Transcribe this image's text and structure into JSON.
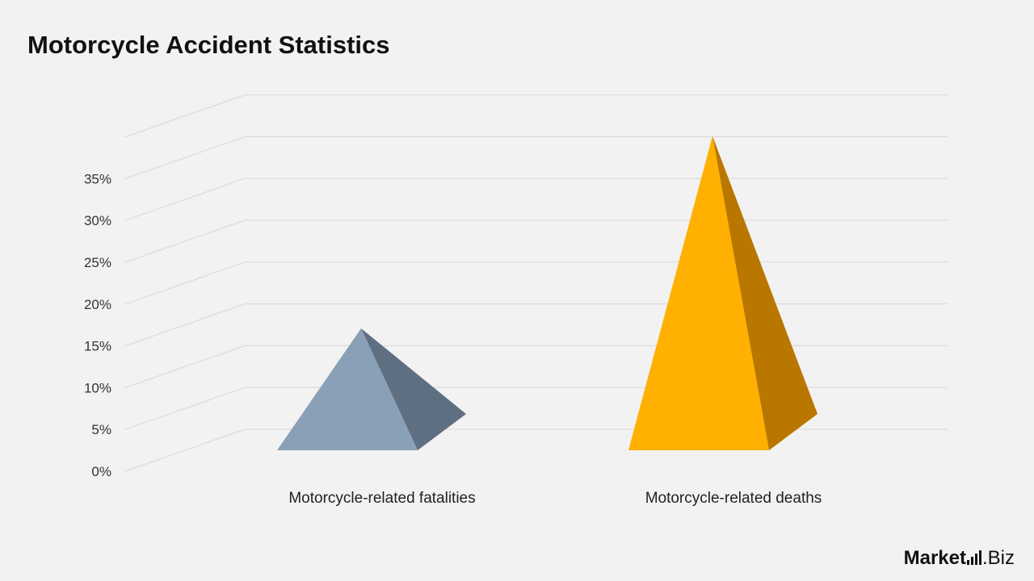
{
  "chart_data": {
    "type": "bar",
    "style": "3d-pyramid",
    "title": "Motorcycle Accident Statistics",
    "xlabel": "",
    "ylabel": "",
    "categories": [
      "Motorcycle-related fatalities",
      "Motorcycle-related deaths"
    ],
    "values": [
      14,
      37
    ],
    "yticks": [
      "0%",
      "5%",
      "10%",
      "15%",
      "20%",
      "25%",
      "30%",
      "35%"
    ],
    "ylim": [
      0,
      40
    ],
    "grid": true,
    "colors": [
      {
        "front": "#8aa0b7",
        "side": "#5f6f82"
      },
      {
        "front": "#ffb000",
        "side": "#b97700"
      }
    ]
  },
  "brand": {
    "text": "Market",
    "suffix": ".Biz"
  }
}
